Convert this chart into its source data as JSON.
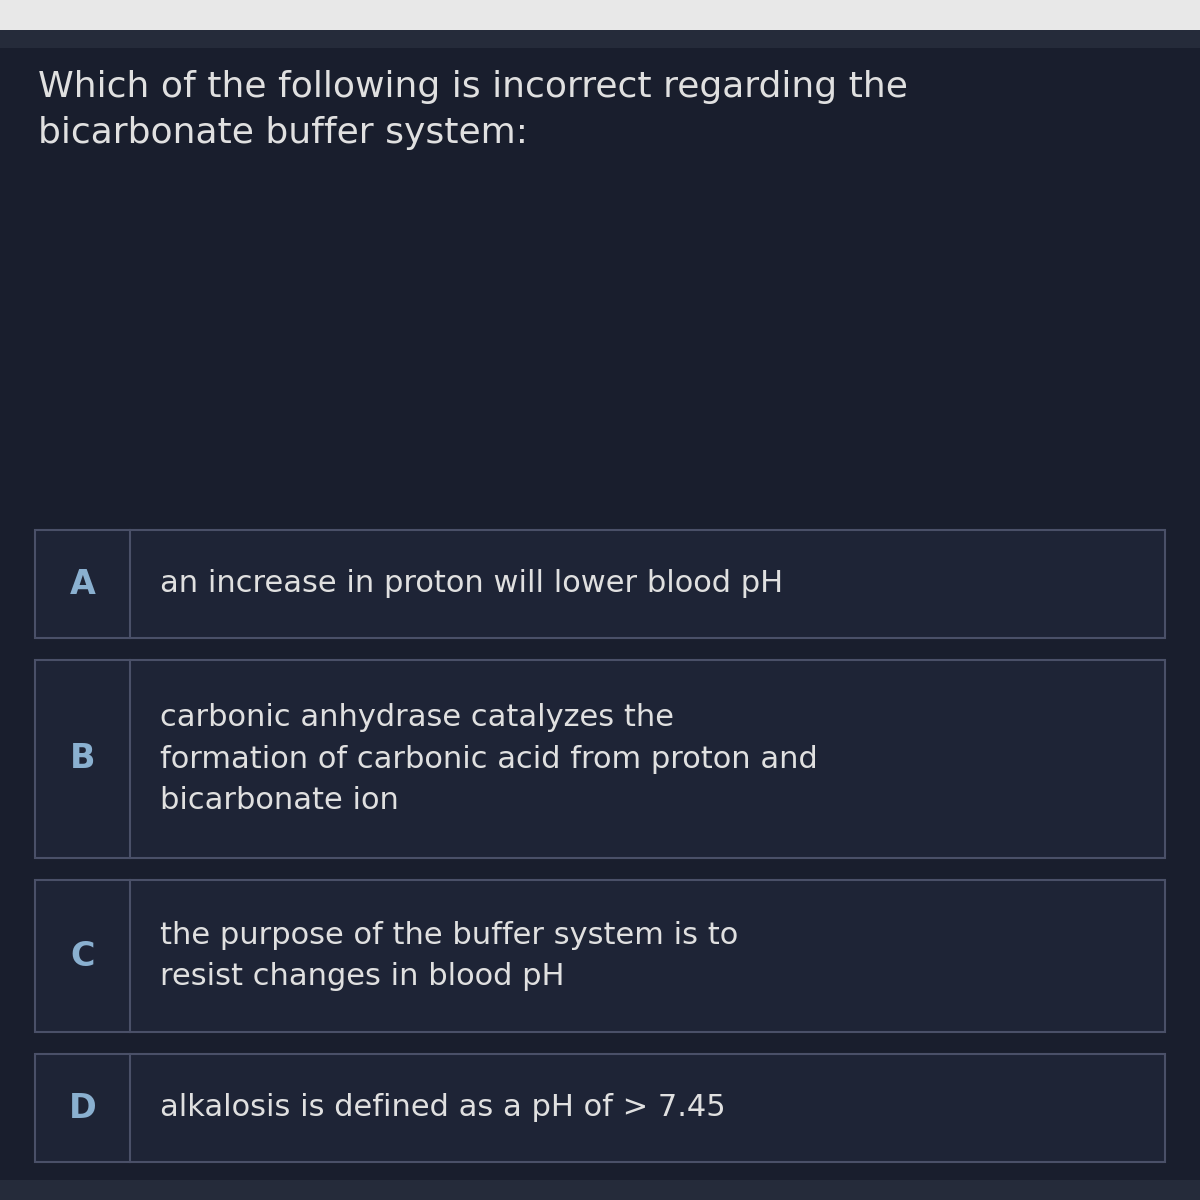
{
  "bg_color": "#191e2d",
  "box_bg_color": "#1e2436",
  "border_color": "#4a5068",
  "label_color": "#8ab0d0",
  "text_color": "#e0e0e0",
  "white_bar_color": "#e8e8e8",
  "dark_bar_color": "#252b3a",
  "title": "Which of the following is incorrect regarding the\nbicarbonate buffer system:",
  "title_fontsize": 26,
  "option_fontsize": 22,
  "label_fontsize": 24,
  "options": [
    {
      "label": "A",
      "text": "an increase in proton will lower blood pH"
    },
    {
      "label": "B",
      "text": "carbonic anhydrase catalyzes the\nformation of carbonic acid from proton and\nbicarbonate ion"
    },
    {
      "label": "C",
      "text": "the purpose of the buffer system is to\nresist changes in blood pH"
    },
    {
      "label": "D",
      "text": "alkalosis is defined as a pH of > 7.45"
    }
  ]
}
